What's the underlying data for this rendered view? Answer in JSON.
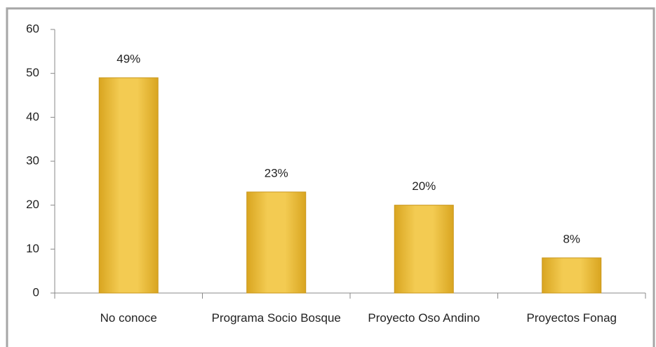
{
  "chart_data": {
    "type": "bar",
    "categories": [
      "No conoce",
      "Programa Socio Bosque",
      "Proyecto Oso Andino",
      "Proyectos Fonag"
    ],
    "values": [
      49,
      23,
      20,
      8
    ],
    "value_labels": [
      "49%",
      "23%",
      "20%",
      "8%"
    ],
    "color": "#ebbb3b",
    "ylim": [
      0,
      60
    ],
    "yticks": [
      0,
      10,
      20,
      30,
      40,
      50,
      60
    ],
    "grid": false
  }
}
